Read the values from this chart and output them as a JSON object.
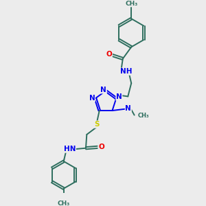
{
  "background_color": "#ececec",
  "bond_color": "#2d6e5e",
  "atom_colors": {
    "N": "#0000ee",
    "O": "#ee0000",
    "S": "#cccc00",
    "C": "#2d6e5e"
  },
  "figsize": [
    3.0,
    3.0
  ],
  "dpi": 100,
  "xlim": [
    0,
    10
  ],
  "ylim": [
    0,
    10
  ]
}
